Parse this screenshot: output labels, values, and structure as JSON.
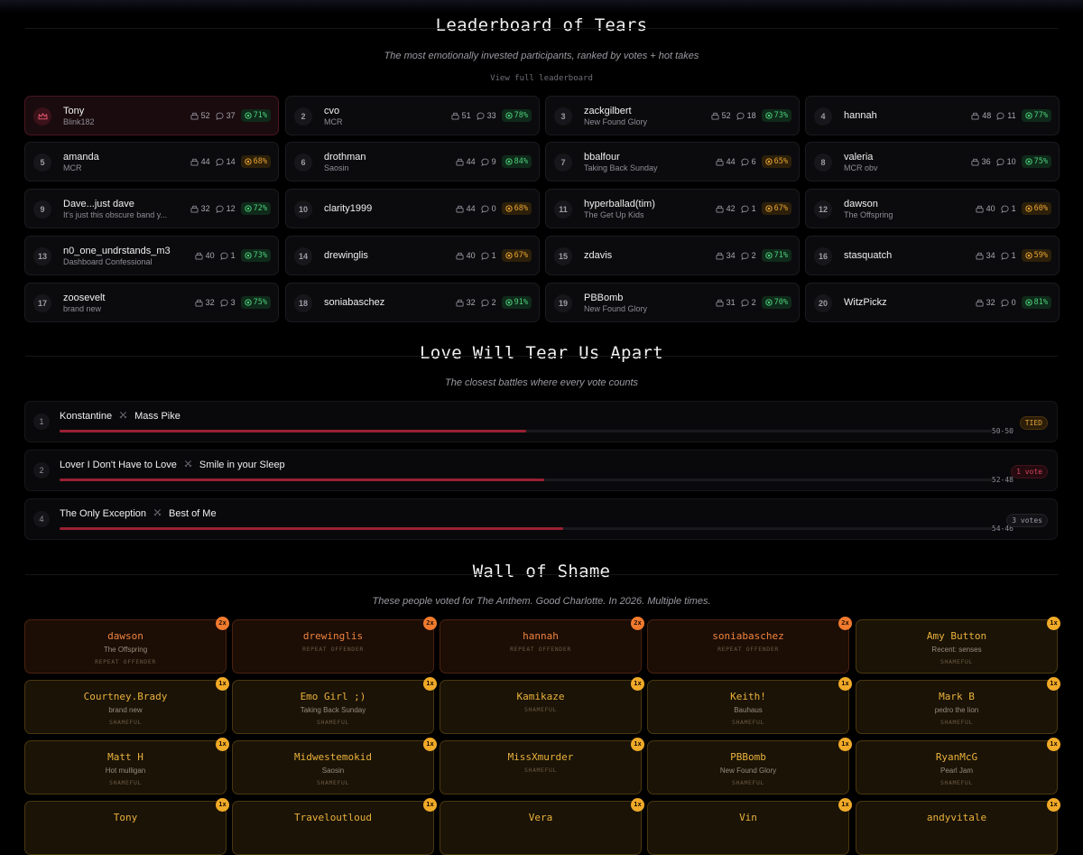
{
  "leaderboard": {
    "title": "Leaderboard of Tears",
    "subtitle": "The most emotionally invested participants, ranked by votes + hot takes",
    "view_link": "View full leaderboard",
    "entries": [
      {
        "rank": "1",
        "name": "Tony",
        "band": "Blink182",
        "votes": "52",
        "comments": "37",
        "pct": "71%",
        "pct_color": "green"
      },
      {
        "rank": "2",
        "name": "cvo",
        "band": "MCR",
        "votes": "51",
        "comments": "33",
        "pct": "78%",
        "pct_color": "green"
      },
      {
        "rank": "3",
        "name": "zackgilbert",
        "band": "New Found Glory",
        "votes": "52",
        "comments": "18",
        "pct": "73%",
        "pct_color": "green"
      },
      {
        "rank": "4",
        "name": "hannah",
        "band": "",
        "votes": "48",
        "comments": "11",
        "pct": "77%",
        "pct_color": "green"
      },
      {
        "rank": "5",
        "name": "amanda",
        "band": "MCR",
        "votes": "44",
        "comments": "14",
        "pct": "68%",
        "pct_color": "orange"
      },
      {
        "rank": "6",
        "name": "drothman",
        "band": "Saosin",
        "votes": "44",
        "comments": "9",
        "pct": "84%",
        "pct_color": "green"
      },
      {
        "rank": "7",
        "name": "bbalfour",
        "band": "Taking Back Sunday",
        "votes": "44",
        "comments": "6",
        "pct": "65%",
        "pct_color": "orange"
      },
      {
        "rank": "8",
        "name": "valeria",
        "band": "MCR obv",
        "votes": "36",
        "comments": "10",
        "pct": "75%",
        "pct_color": "green"
      },
      {
        "rank": "9",
        "name": "Dave...just dave",
        "band": "It's just this obscure band y...",
        "votes": "32",
        "comments": "12",
        "pct": "72%",
        "pct_color": "green"
      },
      {
        "rank": "10",
        "name": "clarity1999",
        "band": "",
        "votes": "44",
        "comments": "0",
        "pct": "68%",
        "pct_color": "orange"
      },
      {
        "rank": "11",
        "name": "hyperballad(tim)",
        "band": "The Get Up Kids",
        "votes": "42",
        "comments": "1",
        "pct": "67%",
        "pct_color": "orange"
      },
      {
        "rank": "12",
        "name": "dawson",
        "band": "The Offspring",
        "votes": "40",
        "comments": "1",
        "pct": "60%",
        "pct_color": "orange"
      },
      {
        "rank": "13",
        "name": "n0_one_undrstands_m3",
        "band": "Dashboard Confessional",
        "votes": "40",
        "comments": "1",
        "pct": "73%",
        "pct_color": "green"
      },
      {
        "rank": "14",
        "name": "drewinglis",
        "band": "",
        "votes": "40",
        "comments": "1",
        "pct": "67%",
        "pct_color": "orange"
      },
      {
        "rank": "15",
        "name": "zdavis",
        "band": "",
        "votes": "34",
        "comments": "2",
        "pct": "71%",
        "pct_color": "green"
      },
      {
        "rank": "16",
        "name": "stasquatch",
        "band": "",
        "votes": "34",
        "comments": "1",
        "pct": "59%",
        "pct_color": "orange"
      },
      {
        "rank": "17",
        "name": "zoosevelt",
        "band": "brand new",
        "votes": "32",
        "comments": "3",
        "pct": "75%",
        "pct_color": "green"
      },
      {
        "rank": "18",
        "name": "soniabaschez",
        "band": "",
        "votes": "32",
        "comments": "2",
        "pct": "91%",
        "pct_color": "green"
      },
      {
        "rank": "19",
        "name": "PBBomb",
        "band": "New Found Glory",
        "votes": "31",
        "comments": "2",
        "pct": "70%",
        "pct_color": "green"
      },
      {
        "rank": "20",
        "name": "WitzPickz",
        "band": "",
        "votes": "32",
        "comments": "0",
        "pct": "81%",
        "pct_color": "green"
      }
    ]
  },
  "battles": {
    "title": "Love Will Tear Us Apart",
    "subtitle": "The closest battles where every vote counts",
    "items": [
      {
        "rank": "1",
        "left": "Konstantine",
        "right": "Mass Pike",
        "score": "50-50",
        "share": 0.5,
        "badge": "TIED",
        "badge_type": "tied"
      },
      {
        "rank": "2",
        "left": "Lover I Don't Have to Love",
        "right": "Smile in your Sleep",
        "score": "52-48",
        "share": 0.52,
        "badge": "1 vote",
        "badge_type": "vote1"
      },
      {
        "rank": "4",
        "left": "The Only Exception",
        "right": "Best of Me",
        "score": "54-46",
        "share": 0.54,
        "badge": "3 votes",
        "badge_type": "votes"
      }
    ]
  },
  "shame": {
    "title": "Wall of Shame",
    "subtitle": "These people voted for The Anthem. Good Charlotte. In 2026. Multiple times.",
    "entries": [
      {
        "name": "dawson",
        "band": "The Offspring",
        "label": "REPEAT OFFENDER",
        "count": "2x",
        "tone": "hot"
      },
      {
        "name": "drewinglis",
        "band": "",
        "label": "REPEAT OFFENDER",
        "count": "2x",
        "tone": "hot"
      },
      {
        "name": "hannah",
        "band": "",
        "label": "REPEAT OFFENDER",
        "count": "2x",
        "tone": "hot"
      },
      {
        "name": "soniabaschez",
        "band": "",
        "label": "REPEAT OFFENDER",
        "count": "2x",
        "tone": "hot"
      },
      {
        "name": "Amy Button",
        "band": "Recent: senses",
        "label": "SHAMEFUL",
        "count": "1x",
        "tone": "warm"
      },
      {
        "name": "Courtney.Brady",
        "band": "brand new",
        "label": "SHAMEFUL",
        "count": "1x",
        "tone": "warm"
      },
      {
        "name": "Emo Girl ;)",
        "band": "Taking Back Sunday",
        "label": "SHAMEFUL",
        "count": "1x",
        "tone": "warm"
      },
      {
        "name": "Kamikaze",
        "band": "",
        "label": "SHAMEFUL",
        "count": "1x",
        "tone": "warm"
      },
      {
        "name": "Keith!",
        "band": "Bauhaus",
        "label": "SHAMEFUL",
        "count": "1x",
        "tone": "warm"
      },
      {
        "name": "Mark B",
        "band": "pedro the lion",
        "label": "SHAMEFUL",
        "count": "1x",
        "tone": "warm"
      },
      {
        "name": "Matt H",
        "band": "Hot mulligan",
        "label": "SHAMEFUL",
        "count": "1x",
        "tone": "warm"
      },
      {
        "name": "Midwestemokid",
        "band": "Saosin",
        "label": "SHAMEFUL",
        "count": "1x",
        "tone": "warm"
      },
      {
        "name": "MissXmurder",
        "band": "",
        "label": "SHAMEFUL",
        "count": "1x",
        "tone": "warm"
      },
      {
        "name": "PBBomb",
        "band": "New Found Glory",
        "label": "SHAMEFUL",
        "count": "1x",
        "tone": "warm"
      },
      {
        "name": "RyanMcG",
        "band": "Pearl Jam",
        "label": "SHAMEFUL",
        "count": "1x",
        "tone": "warm"
      },
      {
        "name": "Tony",
        "band": "",
        "label": "",
        "count": "1x",
        "tone": "warm"
      },
      {
        "name": "Traveloutloud",
        "band": "",
        "label": "",
        "count": "1x",
        "tone": "warm"
      },
      {
        "name": "Vera",
        "band": "",
        "label": "",
        "count": "1x",
        "tone": "warm"
      },
      {
        "name": "Vin",
        "band": "",
        "label": "",
        "count": "1x",
        "tone": "warm"
      },
      {
        "name": "andyvitale",
        "band": "",
        "label": "",
        "count": "1x",
        "tone": "warm"
      }
    ]
  },
  "icons": {
    "votes": "ballot-box-icon",
    "comments": "comment-icon",
    "pct": "target-icon",
    "crown": "crown-icon",
    "versus": "crossed-swords-icon"
  },
  "colors": {
    "accent_red": "#9a2033",
    "green": "#4ccf7a",
    "orange": "#e8a331",
    "shame_hot": "#f07a2e",
    "shame_warm": "#eab13c"
  }
}
